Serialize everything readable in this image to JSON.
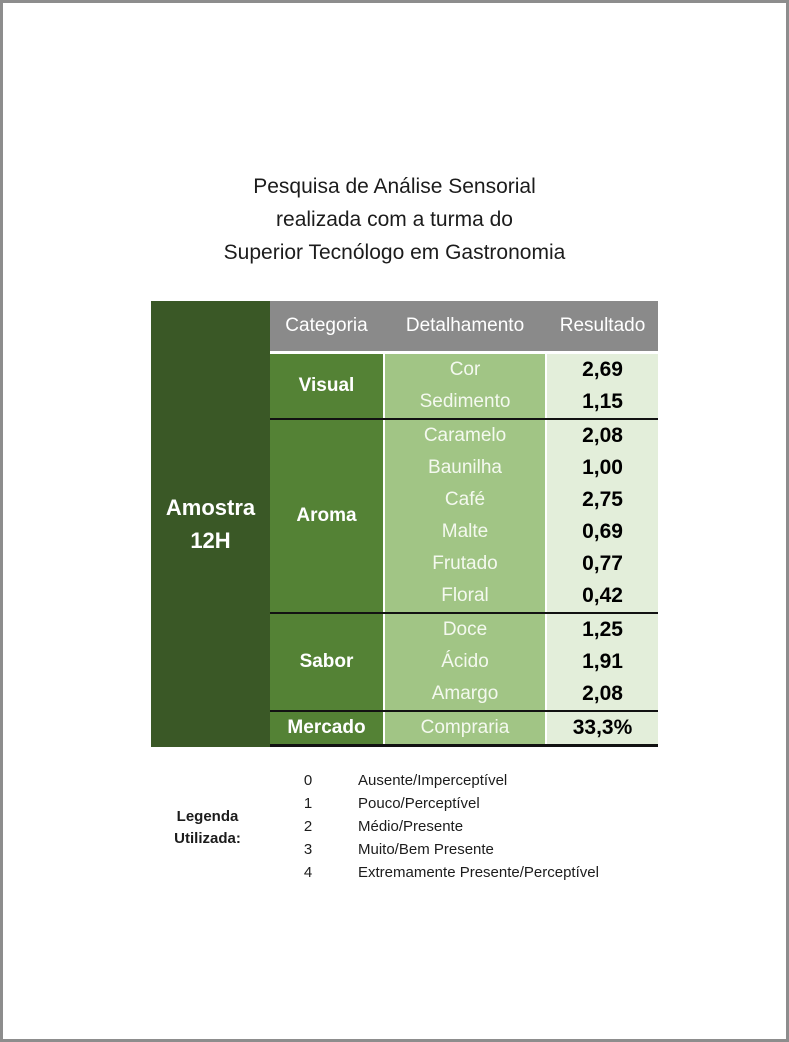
{
  "page": {
    "title_lines": [
      "Pesquisa de Análise Sensorial",
      "realizada com a turma do",
      "Superior Tecnólogo em Gastronomia"
    ]
  },
  "table": {
    "sample_label_lines": [
      "Amostra",
      "12H"
    ],
    "columns": [
      "Categoria",
      "Detalhamento",
      "Resultado"
    ],
    "sections": [
      {
        "category": "Visual",
        "rows": [
          {
            "detail": "Cor",
            "result": "2,69"
          },
          {
            "detail": "Sedimento",
            "result": "1,15"
          }
        ]
      },
      {
        "category": "Aroma",
        "rows": [
          {
            "detail": "Caramelo",
            "result": "2,08"
          },
          {
            "detail": "Baunilha",
            "result": "1,00"
          },
          {
            "detail": "Café",
            "result": "2,75"
          },
          {
            "detail": "Malte",
            "result": "0,69"
          },
          {
            "detail": "Frutado",
            "result": "0,77"
          },
          {
            "detail": "Floral",
            "result": "0,42"
          }
        ]
      },
      {
        "category": "Sabor",
        "rows": [
          {
            "detail": "Doce",
            "result": "1,25"
          },
          {
            "detail": "Ácido",
            "result": "1,91"
          },
          {
            "detail": "Amargo",
            "result": "2,08"
          }
        ]
      },
      {
        "category": "Mercado",
        "rows": [
          {
            "detail": "Compraria",
            "result": "33,3%"
          }
        ]
      }
    ]
  },
  "legend": {
    "label_lines": [
      "Legenda",
      "Utilizada:"
    ],
    "items": [
      {
        "value": "0",
        "meaning": "Ausente/Imperceptível"
      },
      {
        "value": "1",
        "meaning": "Pouco/Perceptível"
      },
      {
        "value": "2",
        "meaning": "Médio/Presente"
      },
      {
        "value": "3",
        "meaning": "Muito/Bem Presente"
      },
      {
        "value": "4",
        "meaning": "Extremamente Presente/Perceptível"
      }
    ]
  },
  "colors": {
    "dark_green": "#3a5826",
    "category_green": "#548235",
    "detail_green": "#a1c585",
    "result_pale_green": "#e3eeda",
    "header_gray": "#8a8a8a",
    "page_border_gray": "#8d8d8d",
    "section_divider": "#121212"
  }
}
